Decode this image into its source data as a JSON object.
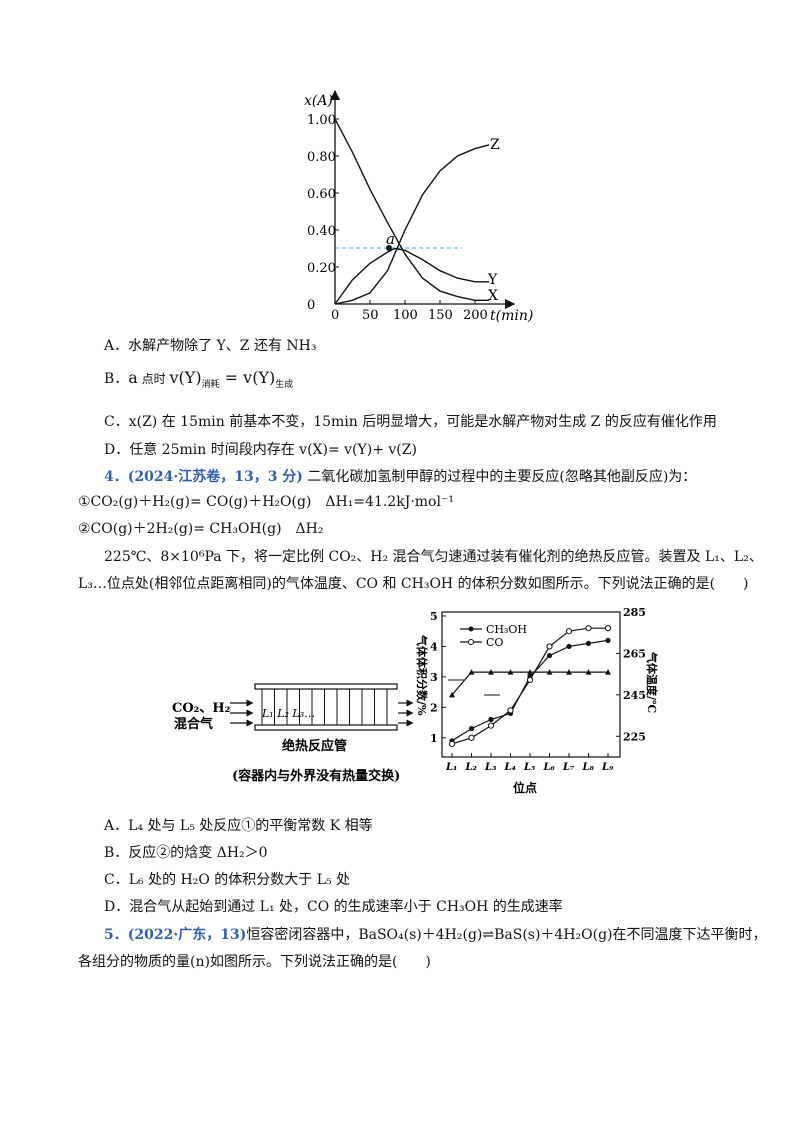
{
  "chart1": {
    "y_axis_label": "x(A)",
    "x_axis_label": "t(min)",
    "y_ticks": [
      "1.00",
      "0.80",
      "0.60",
      "0.40",
      "0.20",
      "0"
    ],
    "x_ticks": [
      "0",
      "50",
      "100",
      "150",
      "200"
    ],
    "point_label": "a",
    "series_labels": [
      "Z",
      "Y",
      "X"
    ]
  },
  "q3_options": {
    "A": "A．水解产物除了 Y、Z 还有 NH₃",
    "B_prefix": "B．",
    "B_a": "a",
    "B_mid": " 点时 ",
    "B_v1": "v(Y)",
    "B_sub1": "消耗",
    "B_eq": " = ",
    "B_v2": "v(Y)",
    "B_sub2": "生成",
    "C": "C．x(Z) 在 15min 前基本不变，15min 后明显增大，可能是水解产物对生成 Z 的反应有催化作用",
    "D": "D．任意 25min 时间段内存在 v(X)= v(Y)+ v(Z)"
  },
  "q4": {
    "number": "4．",
    "source": "(2024·江苏卷，13，3 分)",
    "stem": " 二氧化碳加氢制甲醇的过程中的主要反应(忽略其他副反应)为：",
    "r1": "①CO₂(g)＋H₂(g)= CO(g)＋H₂O(g)　ΔH₁=41.2kJ·mol⁻¹",
    "r2": "②CO(g)＋2H₂(g)= CH₃OH(g)　ΔH₂",
    "cond1": "225℃、8×10⁶Pa 下，将一定比例 CO₂、H₂ 混合气匀速通过装有催化剂的绝热反应管。装置及 L₁、L₂、",
    "cond2": "L₃…位点处(相邻位点距离相同)的气体温度、CO 和 CH₃OH 的体积分数如图所示。下列说法正确的是(　　)",
    "A": "A．L₄ 处与 L₅ 处反应①的平衡常数 K 相等",
    "B": "B．反应②的焓变 ΔH₂＞0",
    "C": "C．L₆ 处的 H₂O 的体积分数大于 L₅ 处",
    "D": "D．混合气从起始到通过 L₁ 处，CO 的生成速率小于 CH₃OH 的生成速率"
  },
  "apparatus": {
    "gas_line1": "CO₂、H₂",
    "gas_line2": "混合气",
    "tube_label": "绝热反应管",
    "positions_label": "L₁ L₂ L₃…",
    "caption": "(容器内与外界没有热量交换)"
  },
  "chart2": {
    "left_ylabel": "气体体积分数/%",
    "right_ylabel": "气体温度/℃",
    "xlabel": "位点",
    "left_ticks": [
      "5",
      "4",
      "3",
      "2",
      "1"
    ],
    "right_ticks": [
      "285",
      "265",
      "245",
      "225"
    ],
    "x_ticks": [
      "L₁",
      "L₂",
      "L₃",
      "L₄",
      "L₅",
      "L₆",
      "L₇",
      "L₈",
      "L₉"
    ],
    "legend": [
      "CH₃OH",
      "CO"
    ]
  },
  "q5": {
    "number": "5．",
    "source": "(2022·广东，13)",
    "stem": "恒容密闭容器中，BaSO₄(s)＋4H₂(g)⇌BaS(s)＋4H₂O(g)在不同温度下达平衡时，",
    "stem2": "各组分的物质的量(n)如图所示。下列说法正确的是(　　)"
  },
  "chart_data": [
    {
      "type": "line",
      "title": "",
      "xlabel": "t(min)",
      "ylabel": "x(A)",
      "xlim": [
        0,
        220
      ],
      "ylim": [
        0,
        1.0
      ],
      "series": [
        {
          "name": "X",
          "x": [
            0,
            25,
            50,
            75,
            100,
            125,
            150,
            175,
            200,
            220
          ],
          "values": [
            1.0,
            0.82,
            0.62,
            0.44,
            0.27,
            0.14,
            0.07,
            0.04,
            0.02,
            0.02
          ]
        },
        {
          "name": "Y",
          "x": [
            0,
            25,
            50,
            75,
            85,
            100,
            125,
            150,
            175,
            200,
            220
          ],
          "values": [
            0,
            0.13,
            0.22,
            0.28,
            0.3,
            0.29,
            0.24,
            0.18,
            0.14,
            0.12,
            0.12
          ]
        },
        {
          "name": "Z",
          "x": [
            0,
            25,
            50,
            75,
            100,
            125,
            150,
            175,
            200,
            220
          ],
          "values": [
            0,
            0.02,
            0.06,
            0.18,
            0.4,
            0.59,
            0.72,
            0.8,
            0.84,
            0.86
          ]
        }
      ],
      "reference_line_y": 0.3
    },
    {
      "type": "line",
      "title": "",
      "xlabel": "位点",
      "categories": [
        "L1",
        "L2",
        "L3",
        "L4",
        "L5",
        "L6",
        "L7",
        "L8",
        "L9"
      ],
      "ylim_left": [
        0.5,
        5
      ],
      "ylim_right": [
        215,
        285
      ],
      "series": [
        {
          "name": "CH3OH",
          "values": [
            0.9,
            1.3,
            1.6,
            1.8,
            3.0,
            3.7,
            4.0,
            4.1,
            4.2
          ]
        },
        {
          "name": "CO",
          "values": [
            0.8,
            1.0,
            1.4,
            1.9,
            2.9,
            4.0,
            4.5,
            4.6,
            4.6
          ]
        },
        {
          "name": "气体温度",
          "values": [
            245,
            256,
            256,
            256,
            256,
            256,
            256,
            256,
            256
          ]
        }
      ]
    }
  ]
}
